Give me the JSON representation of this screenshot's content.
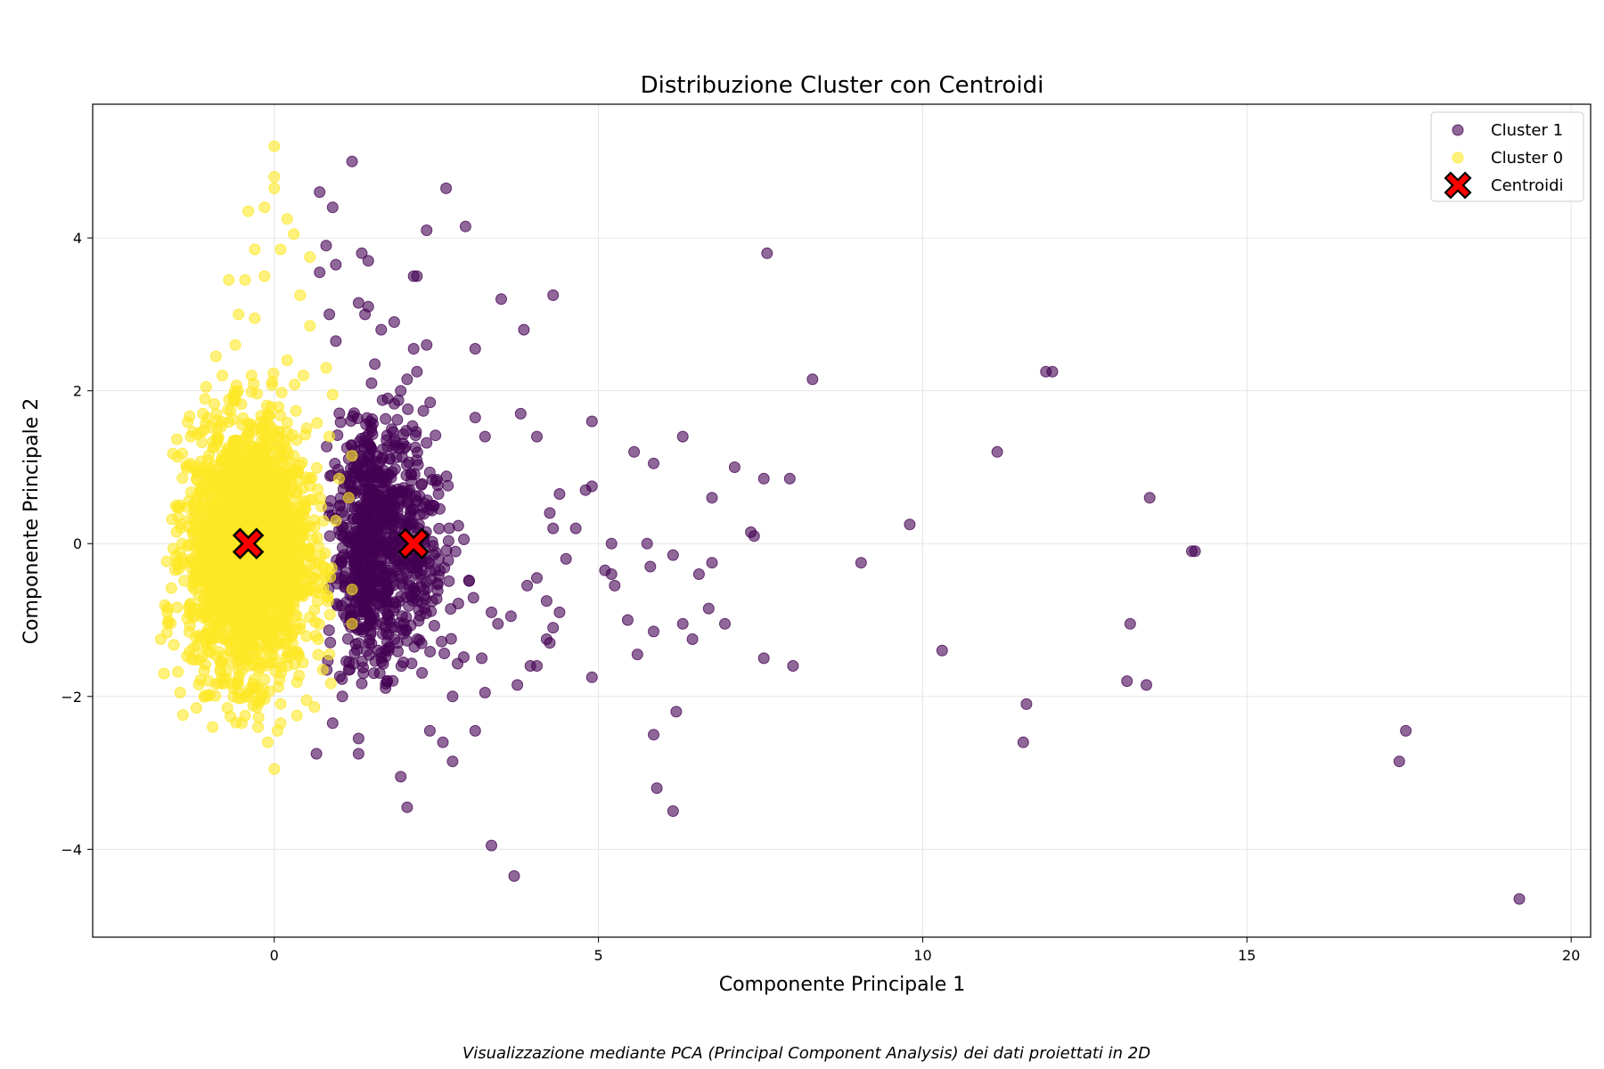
{
  "chart_data": {
    "type": "scatter",
    "title": "Distribuzione Cluster con Centroidi",
    "xlabel": "Componente Principale 1",
    "ylabel": "Componente Principale 2",
    "caption": "Visualizzazione mediante PCA (Principal Component Analysis) dei dati proiettati in 2D",
    "xlim": [
      -2.8,
      20.3
    ],
    "ylim": [
      -5.15,
      5.75
    ],
    "x_ticks": [
      0,
      5,
      10,
      15,
      20
    ],
    "x_tick_labels": [
      "0",
      "5",
      "10",
      "15",
      "20"
    ],
    "y_ticks": [
      -4,
      -2,
      0,
      2,
      4
    ],
    "y_tick_labels": [
      "−4",
      "−2",
      "0",
      "2",
      "4"
    ],
    "grid": true,
    "legend_position": "top-right",
    "legend": [
      {
        "label": "Cluster 1",
        "marker": "circle",
        "color": "#440154"
      },
      {
        "label": "Cluster 0",
        "marker": "circle",
        "color": "#fde725"
      },
      {
        "label": "Centroidi",
        "marker": "X",
        "color": "#ff0000"
      }
    ],
    "series": [
      {
        "name": "Cluster 0",
        "color": "#fde725",
        "cloud": {
          "x_range": [
            -1.7,
            0.9
          ],
          "y_range": [
            -2.4,
            2.5
          ],
          "approx_count": 2500
        },
        "points": [
          [
            0.0,
            5.2
          ],
          [
            0.0,
            4.8
          ],
          [
            0.0,
            4.65
          ],
          [
            -0.4,
            4.35
          ],
          [
            -0.15,
            4.4
          ],
          [
            0.2,
            4.25
          ],
          [
            0.3,
            4.05
          ],
          [
            -0.3,
            3.85
          ],
          [
            0.1,
            3.85
          ],
          [
            0.55,
            3.75
          ],
          [
            -0.7,
            3.45
          ],
          [
            -0.45,
            3.45
          ],
          [
            -0.15,
            3.5
          ],
          [
            0.4,
            3.25
          ],
          [
            -0.55,
            3.0
          ],
          [
            -0.3,
            2.95
          ],
          [
            0.55,
            2.85
          ],
          [
            0.8,
            2.3
          ],
          [
            0.9,
            1.95
          ],
          [
            0.85,
            1.4
          ],
          [
            1.2,
            1.15
          ],
          [
            1.0,
            0.85
          ],
          [
            1.15,
            0.6
          ],
          [
            0.95,
            0.3
          ],
          [
            1.2,
            -0.6
          ],
          [
            1.2,
            -1.05
          ],
          [
            0.85,
            -1.45
          ],
          [
            0.75,
            -1.65
          ],
          [
            0.5,
            -2.05
          ],
          [
            0.35,
            -2.25
          ],
          [
            0.1,
            -2.35
          ],
          [
            -0.25,
            -2.4
          ],
          [
            -0.45,
            -2.25
          ],
          [
            -0.95,
            -2.4
          ],
          [
            -1.2,
            -2.15
          ],
          [
            -1.45,
            -1.95
          ],
          [
            -1.7,
            -1.7
          ],
          [
            -1.75,
            -1.25
          ],
          [
            -1.65,
            -0.9
          ],
          [
            -1.5,
            -0.25
          ],
          [
            -1.45,
            0.5
          ],
          [
            -1.3,
            1.05
          ],
          [
            -1.1,
            1.7
          ],
          [
            -1.05,
            2.05
          ],
          [
            -0.9,
            2.45
          ],
          [
            -0.6,
            2.6
          ],
          [
            0.05,
            -2.45
          ],
          [
            0.0,
            -2.95
          ],
          [
            -0.1,
            -2.6
          ],
          [
            -0.5,
            -2.35
          ],
          [
            -0.35,
            2.2
          ],
          [
            0.2,
            2.4
          ],
          [
            0.45,
            2.2
          ],
          [
            -0.8,
            2.2
          ]
        ]
      },
      {
        "name": "Cluster 1",
        "color": "#440154",
        "cloud": {
          "x_range": [
            0.8,
            2.5
          ],
          "y_range": [
            -1.9,
            1.9
          ],
          "approx_count": 900
        },
        "points": [
          [
            1.2,
            5.0
          ],
          [
            2.65,
            4.65
          ],
          [
            0.7,
            4.6
          ],
          [
            0.9,
            4.4
          ],
          [
            2.95,
            4.15
          ],
          [
            2.35,
            4.1
          ],
          [
            0.8,
            3.9
          ],
          [
            0.95,
            3.65
          ],
          [
            1.35,
            3.8
          ],
          [
            1.45,
            3.7
          ],
          [
            0.7,
            3.55
          ],
          [
            2.2,
            3.5
          ],
          [
            2.15,
            3.5
          ],
          [
            3.5,
            3.2
          ],
          [
            4.3,
            3.25
          ],
          [
            1.3,
            3.15
          ],
          [
            1.45,
            3.1
          ],
          [
            1.4,
            3.0
          ],
          [
            0.85,
            3.0
          ],
          [
            1.85,
            2.9
          ],
          [
            3.85,
            2.8
          ],
          [
            1.65,
            2.8
          ],
          [
            2.35,
            2.6
          ],
          [
            2.15,
            2.55
          ],
          [
            3.1,
            2.55
          ],
          [
            0.95,
            2.65
          ],
          [
            1.55,
            2.35
          ],
          [
            1.5,
            2.1
          ],
          [
            2.05,
            2.15
          ],
          [
            1.95,
            2.0
          ],
          [
            2.2,
            2.25
          ],
          [
            1.75,
            1.9
          ],
          [
            3.1,
            1.65
          ],
          [
            3.8,
            1.7
          ],
          [
            4.9,
            1.6
          ],
          [
            3.25,
            1.4
          ],
          [
            4.05,
            1.4
          ],
          [
            5.55,
            1.2
          ],
          [
            6.3,
            1.4
          ],
          [
            5.85,
            1.05
          ],
          [
            7.1,
            1.0
          ],
          [
            7.55,
            0.85
          ],
          [
            7.95,
            0.85
          ],
          [
            6.75,
            0.6
          ],
          [
            7.4,
            0.1
          ],
          [
            7.35,
            0.15
          ],
          [
            5.2,
            0.0
          ],
          [
            5.75,
            0.0
          ],
          [
            6.15,
            -0.15
          ],
          [
            6.75,
            -0.25
          ],
          [
            5.8,
            -0.3
          ],
          [
            5.1,
            -0.35
          ],
          [
            5.2,
            -0.4
          ],
          [
            6.55,
            -0.4
          ],
          [
            5.25,
            -0.55
          ],
          [
            4.9,
            0.75
          ],
          [
            4.8,
            0.7
          ],
          [
            4.4,
            0.65
          ],
          [
            4.25,
            0.4
          ],
          [
            4.3,
            0.2
          ],
          [
            4.65,
            0.2
          ],
          [
            4.5,
            -0.2
          ],
          [
            4.05,
            -0.45
          ],
          [
            3.9,
            -0.55
          ],
          [
            4.2,
            -0.75
          ],
          [
            4.3,
            -1.1
          ],
          [
            4.2,
            -1.25
          ],
          [
            4.25,
            -1.3
          ],
          [
            4.4,
            -0.9
          ],
          [
            3.95,
            -1.6
          ],
          [
            4.05,
            -1.6
          ],
          [
            5.45,
            -1.0
          ],
          [
            5.85,
            -1.15
          ],
          [
            6.3,
            -1.05
          ],
          [
            6.45,
            -1.25
          ],
          [
            6.7,
            -0.85
          ],
          [
            6.95,
            -1.05
          ],
          [
            5.6,
            -1.45
          ],
          [
            7.55,
            -1.5
          ],
          [
            8.0,
            -1.6
          ],
          [
            6.2,
            -2.2
          ],
          [
            5.85,
            -2.5
          ],
          [
            5.9,
            -3.2
          ],
          [
            6.15,
            -3.5
          ],
          [
            4.9,
            -1.75
          ],
          [
            3.75,
            -1.85
          ],
          [
            3.1,
            -2.45
          ],
          [
            2.75,
            -2.85
          ],
          [
            2.4,
            -2.45
          ],
          [
            2.6,
            -2.6
          ],
          [
            1.95,
            -3.05
          ],
          [
            2.05,
            -3.45
          ],
          [
            3.35,
            -3.95
          ],
          [
            3.7,
            -4.35
          ],
          [
            3.35,
            -0.9
          ],
          [
            3.45,
            -1.05
          ],
          [
            3.65,
            -0.95
          ],
          [
            3.2,
            -1.5
          ],
          [
            3.25,
            -1.95
          ],
          [
            2.75,
            -2.0
          ],
          [
            1.3,
            -2.55
          ],
          [
            1.3,
            -2.75
          ],
          [
            0.65,
            -2.75
          ],
          [
            0.9,
            -2.35
          ],
          [
            1.05,
            -2.0
          ],
          [
            8.3,
            2.15
          ],
          [
            9.8,
            0.25
          ],
          [
            9.05,
            -0.25
          ],
          [
            10.3,
            -1.4
          ],
          [
            11.15,
            1.2
          ],
          [
            11.9,
            2.25
          ],
          [
            12.0,
            2.25
          ],
          [
            11.6,
            -2.1
          ],
          [
            11.55,
            -2.6
          ],
          [
            13.15,
            -1.8
          ],
          [
            13.45,
            -1.85
          ],
          [
            13.2,
            -1.05
          ],
          [
            13.5,
            0.6
          ],
          [
            14.15,
            -0.1
          ],
          [
            14.2,
            -0.1
          ],
          [
            7.6,
            3.8
          ],
          [
            17.35,
            -2.85
          ],
          [
            17.45,
            -2.45
          ],
          [
            19.2,
            -4.65
          ]
        ]
      }
    ],
    "centroids": [
      {
        "x": -0.4,
        "y": 0.0
      },
      {
        "x": 2.15,
        "y": 0.0
      }
    ]
  }
}
